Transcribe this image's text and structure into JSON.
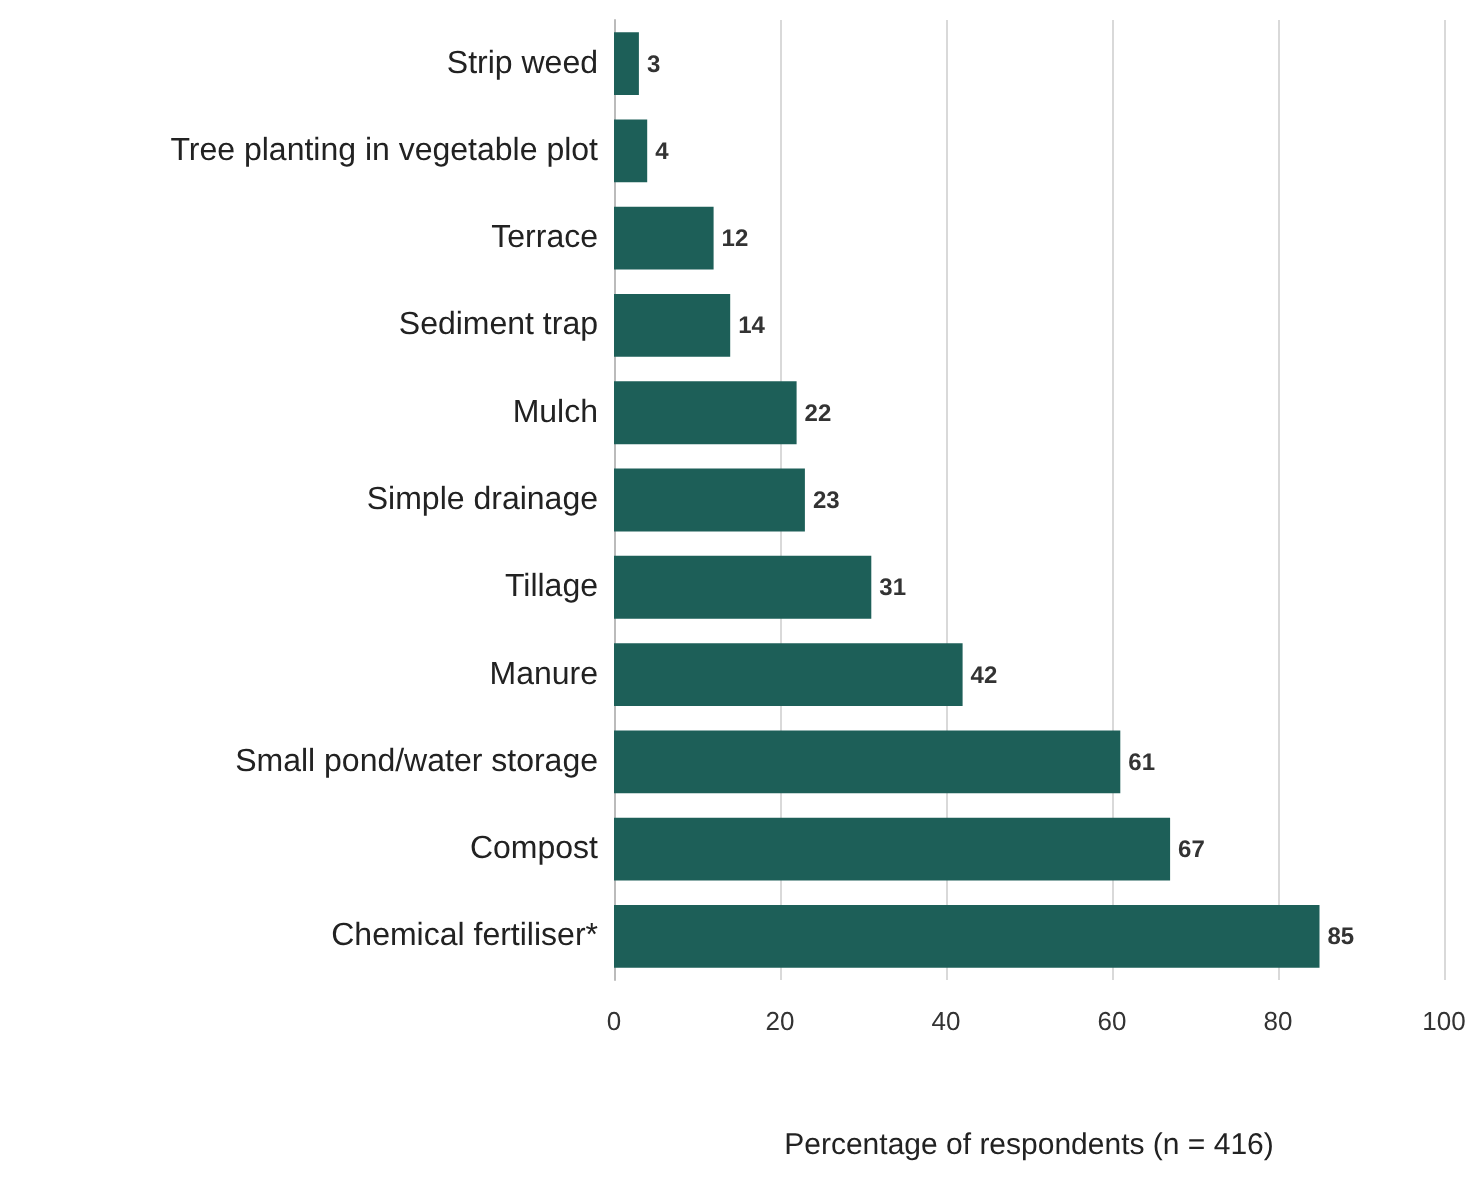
{
  "chart_data": {
    "type": "bar",
    "orientation": "horizontal",
    "categories": [
      "Strip weed",
      "Tree planting in vegetable plot",
      "Terrace",
      "Sediment trap",
      "Mulch",
      "Simple drainage",
      "Tillage",
      "Manure",
      "Small pond/water storage",
      "Compost",
      "Chemical fertiliser*"
    ],
    "values": [
      3,
      4,
      12,
      14,
      22,
      23,
      31,
      42,
      61,
      67,
      85
    ],
    "color": "#1d5f58",
    "xlabel": "Percentage of respondents (n = 416)",
    "xlim": [
      0,
      100
    ],
    "xticks": [
      0,
      20,
      40,
      60,
      80,
      100
    ],
    "grid": "x",
    "data_labels": true
  }
}
